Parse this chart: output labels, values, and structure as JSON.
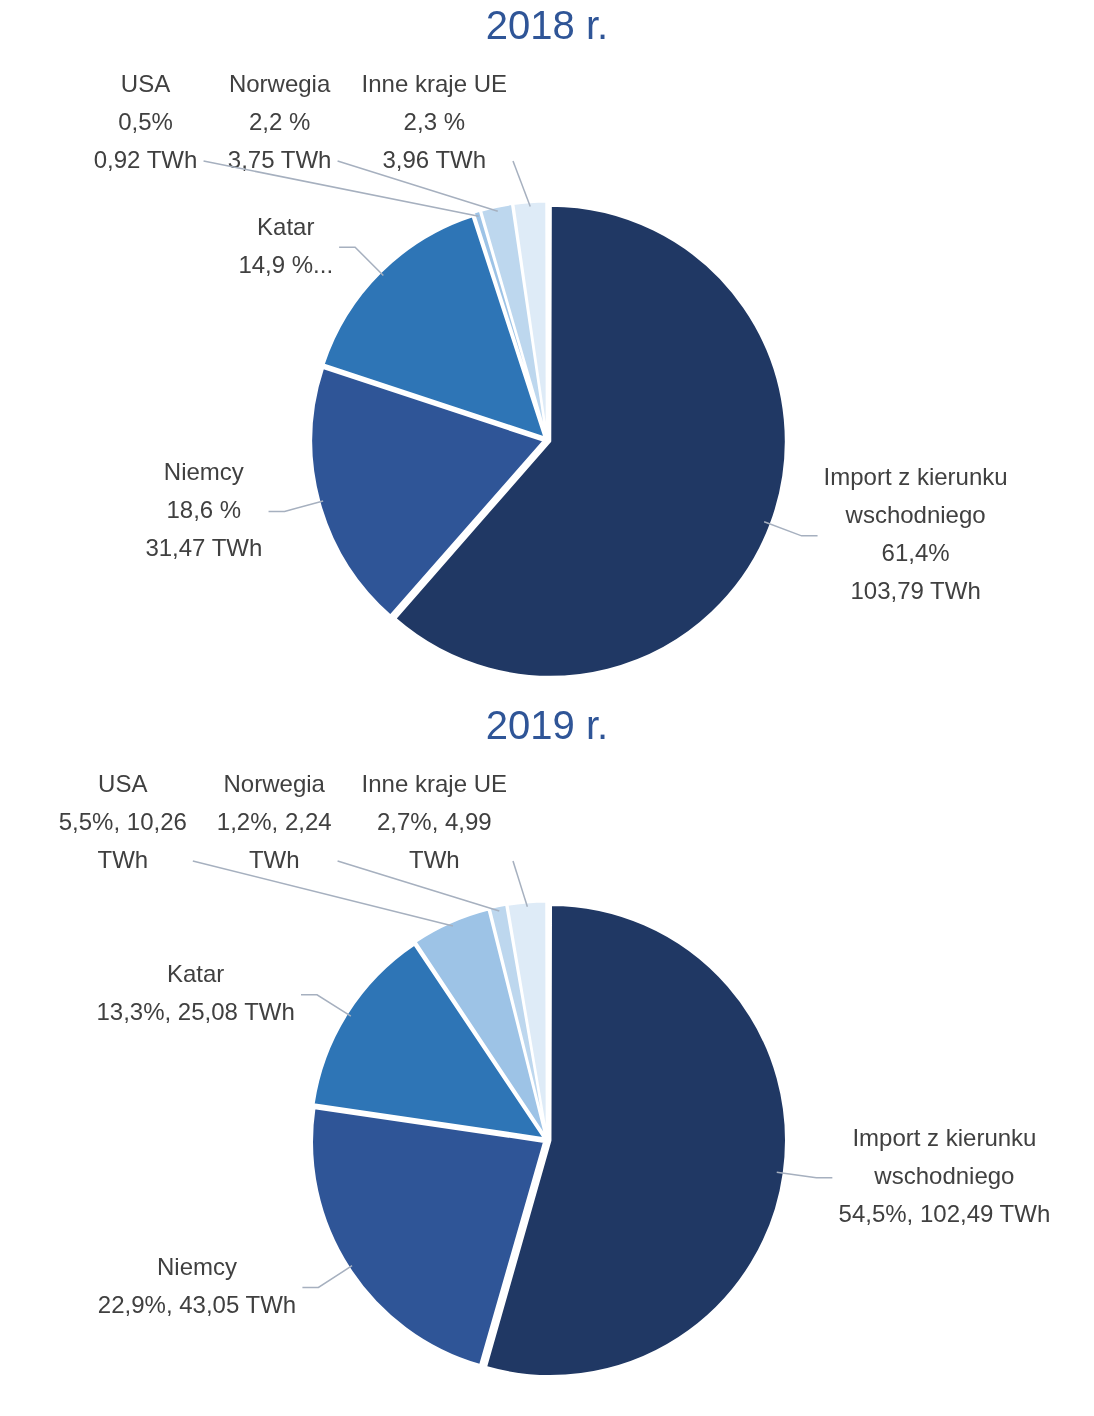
{
  "chart_data": [
    {
      "type": "pie",
      "title": "2018 r.",
      "categories": [
        "Import z kierunku wschodniego",
        "Niemcy",
        "Katar",
        "USA",
        "Norwegia",
        "Inne kraje UE"
      ],
      "values": [
        61.4,
        18.6,
        14.9,
        0.5,
        2.2,
        2.3
      ],
      "colors": [
        "#203864",
        "#2f5597",
        "#2e75b6",
        "#9dc3e6",
        "#bdd7ee",
        "#deebf7"
      ],
      "value_labels": [
        "61,4%\n103,79 TWh",
        "18,6 %\n31,47 TWh",
        "14,9 %...",
        "0,5%\n0,92 TWh",
        "2,2 %\n3,75 TWh",
        "2,3 %\n3,96 TWh"
      ]
    },
    {
      "type": "pie",
      "title": "2019 r.",
      "categories": [
        "Import z kierunku wschodniego",
        "Niemcy",
        "Katar",
        "USA",
        "Norwegia",
        "Inne kraje UE"
      ],
      "values": [
        54.5,
        22.9,
        13.3,
        5.5,
        1.2,
        2.7
      ],
      "colors": [
        "#203864",
        "#2f5597",
        "#2e75b6",
        "#9dc3e6",
        "#bdd7ee",
        "#deebf7"
      ],
      "value_labels": [
        "54,5%, 102,49 TWh",
        "22,9%, 43,05 TWh",
        "13,3%, 25,08 TWh",
        "5,5%, 10,26 TWh",
        "1,2%, 2,24 TWh",
        "2,7%, 4,99 TWh"
      ]
    }
  ]
}
